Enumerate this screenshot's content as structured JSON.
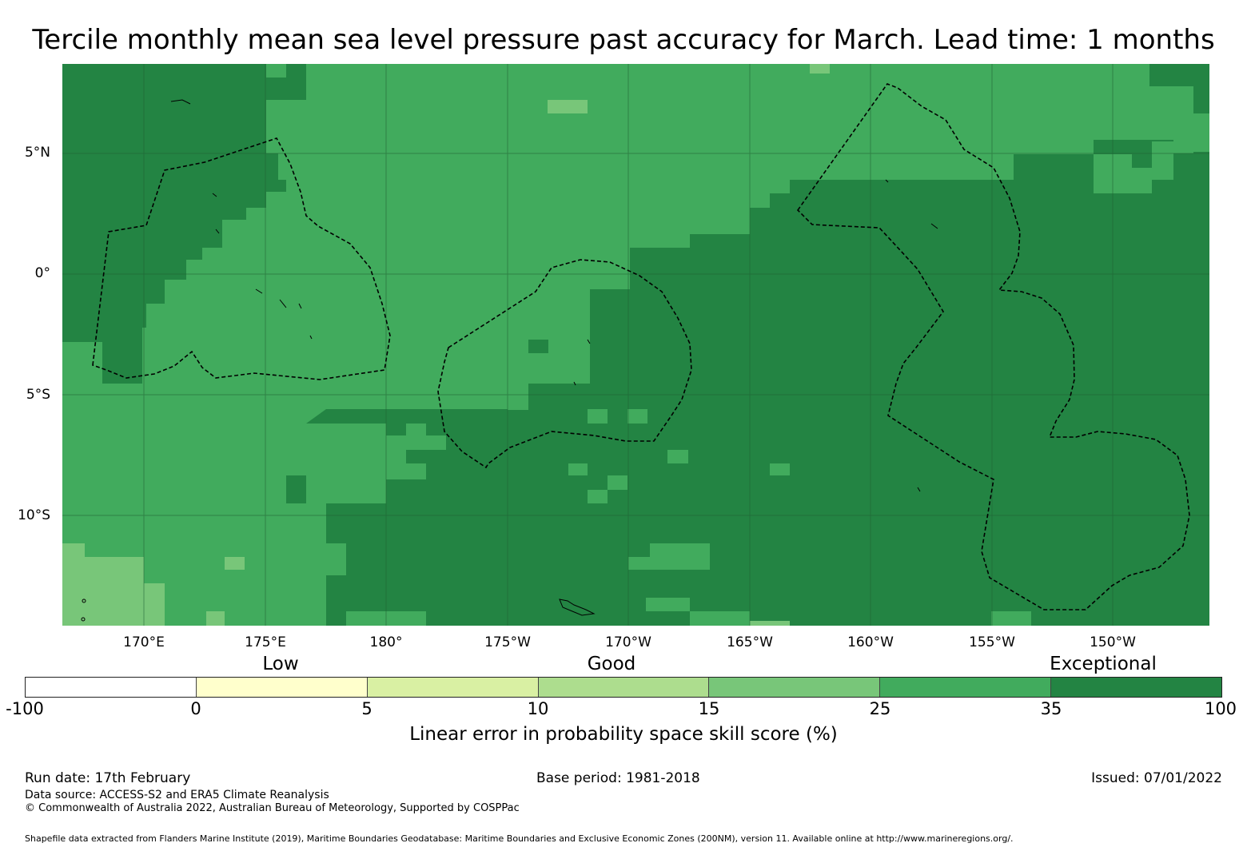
{
  "title": "Tercile monthly mean sea level pressure past accuracy for March. Lead time: 1 months",
  "map": {
    "latitude_labels": [
      {
        "lat": 5,
        "label": "5°N"
      },
      {
        "lat": 0,
        "label": "0°"
      },
      {
        "lat": -5,
        "label": "5°S"
      },
      {
        "lat": -10,
        "label": "10°S"
      }
    ],
    "longitude_labels": [
      {
        "lon": 170,
        "label": "170°E"
      },
      {
        "lon": 175,
        "label": "175°E"
      },
      {
        "lon": 180,
        "label": "180°"
      },
      {
        "lon": 185,
        "label": "175°W"
      },
      {
        "lon": 190,
        "label": "170°W"
      },
      {
        "lon": 195,
        "label": "165°W"
      },
      {
        "lon": 200,
        "label": "160°W"
      },
      {
        "lon": 205,
        "label": "155°W"
      },
      {
        "lon": 210,
        "label": "150°W"
      }
    ],
    "extent": {
      "lon_min": 166.6,
      "lon_max": 213.9,
      "lat_min": -14.5,
      "lat_max": 8.7
    },
    "gridline_color": "#1f5f33",
    "coastline_color": "#000000",
    "boundary_style": "dashed black"
  },
  "legend": {
    "categories": [
      {
        "label": "Low",
        "at_value": "5"
      },
      {
        "label": "Good",
        "at_value": "15"
      },
      {
        "label": "Exceptional",
        "at_value": "35"
      }
    ],
    "bins": [
      {
        "from": "-100",
        "to": "0",
        "color": "#ffffff"
      },
      {
        "from": "0",
        "to": "5",
        "color": "#ffffcc"
      },
      {
        "from": "5",
        "to": "10",
        "color": "#d9f0a3"
      },
      {
        "from": "10",
        "to": "15",
        "color": "#addd8e"
      },
      {
        "from": "15",
        "to": "25",
        "color": "#78c679"
      },
      {
        "from": "25",
        "to": "35",
        "color": "#41ab5d"
      },
      {
        "from": "35",
        "to": "100",
        "color": "#238443"
      }
    ],
    "ticks": [
      "-100",
      "0",
      "5",
      "10",
      "15",
      "25",
      "35",
      "100"
    ],
    "axis_title": "Linear error in probability space skill score (%)"
  },
  "footer": {
    "run_date": "Run date: 17th February",
    "base_period": "Base period: 1981-2018",
    "issued": "Issued: 07/01/2022",
    "data_source": "Data source: ACCESS-S2 and ERA5 Climate Reanalysis",
    "copyright": "© Commonwealth of Australia 2022, Australian Bureau of Meteorology, Supported by COSPPac",
    "shapefile_note": "Shapefile data extracted from Flanders Marine Institute (2019), Maritime Boundaries Geodatabase: Maritime Boundaries and Exclusive Economic Zones (200NM), version 11. Available online at http://www.marineregions.org/."
  }
}
